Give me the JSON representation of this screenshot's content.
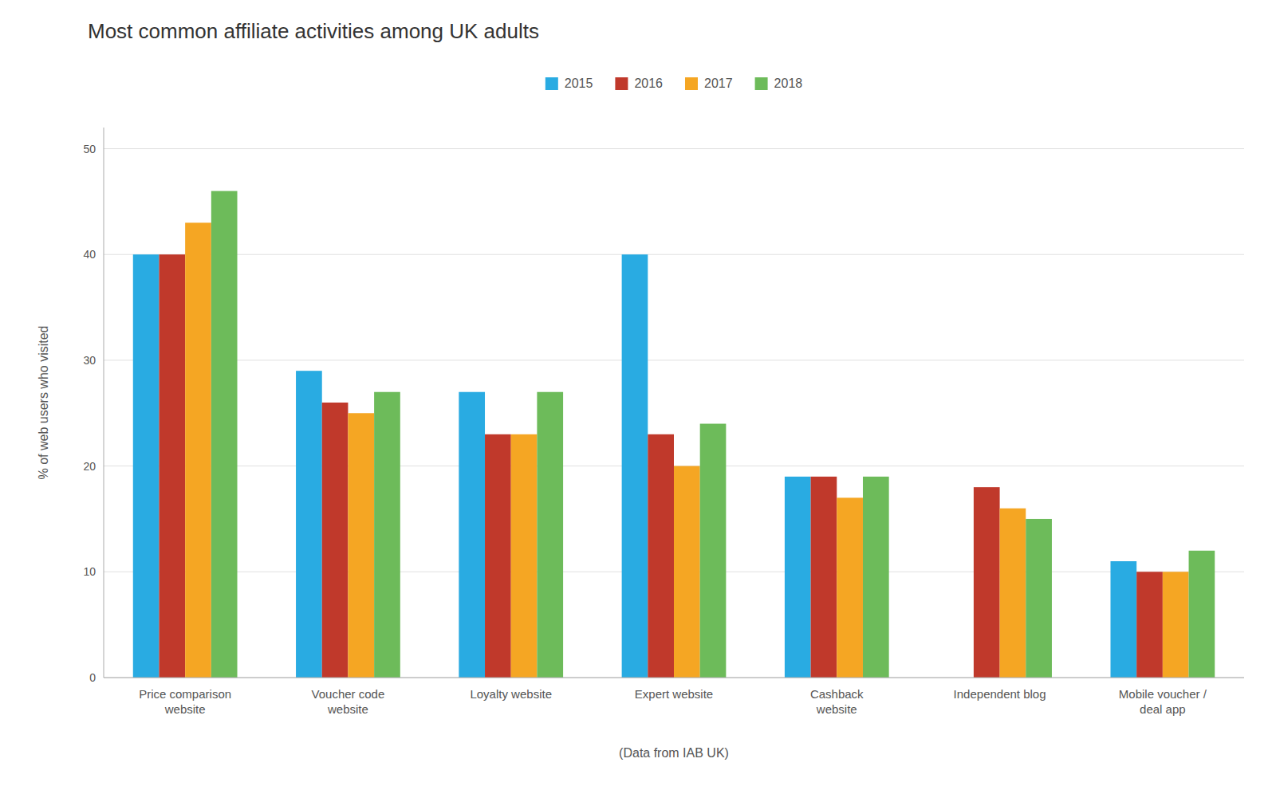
{
  "chart_data": {
    "type": "bar",
    "title": "Most common affiliate activities among UK adults",
    "x_label": "(Data from IAB UK)",
    "y_label": "% of web users who visited",
    "categories": [
      "Price comparison\nwebsite",
      "Voucher code\nwebsite",
      "Loyalty website",
      "Expert website",
      "Cashback\nwebsite",
      "Independent blog",
      "Mobile voucher /\ndeal app"
    ],
    "series": [
      {
        "name": "2015",
        "color": "#29ABE2",
        "values": [
          40,
          29,
          27,
          40,
          19,
          null,
          11
        ]
      },
      {
        "name": "2016",
        "color": "#C0392B",
        "values": [
          40,
          26,
          23,
          23,
          19,
          18,
          10
        ]
      },
      {
        "name": "2017",
        "color": "#F5A623",
        "values": [
          43,
          25,
          23,
          20,
          17,
          16,
          10
        ]
      },
      {
        "name": "2018",
        "color": "#6DBB5A",
        "values": [
          46,
          27,
          27,
          24,
          19,
          15,
          12
        ]
      }
    ],
    "ylim": [
      0,
      52
    ],
    "yticks": [
      0,
      10,
      20,
      30,
      40,
      50
    ],
    "grid": true,
    "legend": "top"
  }
}
